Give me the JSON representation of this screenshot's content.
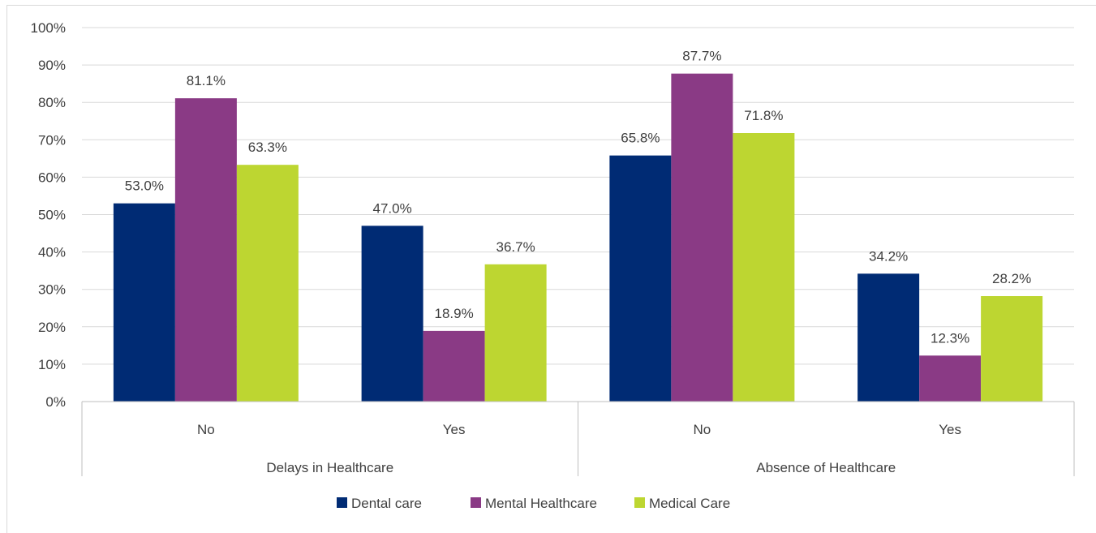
{
  "chart_data": {
    "type": "bar",
    "title": "",
    "xlabel": "",
    "ylabel": "",
    "ylim": [
      0,
      100
    ],
    "yticks": [
      "0%",
      "10%",
      "20%",
      "30%",
      "40%",
      "50%",
      "60%",
      "70%",
      "80%",
      "90%",
      "100%"
    ],
    "grid": true,
    "legend_position": "bottom",
    "groups": [
      {
        "label": "Delays in Healthcare",
        "categories": [
          "No",
          "Yes"
        ]
      },
      {
        "label": "Absence of Healthcare",
        "categories": [
          "No",
          "Yes"
        ]
      }
    ],
    "categories": [
      "No",
      "Yes",
      "No",
      "Yes"
    ],
    "series": [
      {
        "name": "Dental care",
        "color": "#002B74",
        "values": [
          53.0,
          47.0,
          65.8,
          34.2
        ],
        "labels": [
          "53.0%",
          "47.0%",
          "65.8%",
          "34.2%"
        ]
      },
      {
        "name": "Mental Healthcare",
        "color": "#8A3A85",
        "values": [
          81.1,
          18.9,
          87.7,
          12.3
        ],
        "labels": [
          "81.1%",
          "18.9%",
          "87.7%",
          "12.3%"
        ]
      },
      {
        "name": "Medical Care",
        "color": "#BDD631",
        "values": [
          63.3,
          36.7,
          71.8,
          28.2
        ],
        "labels": [
          "63.3%",
          "36.7%",
          "71.8%",
          "28.2%"
        ]
      }
    ]
  }
}
